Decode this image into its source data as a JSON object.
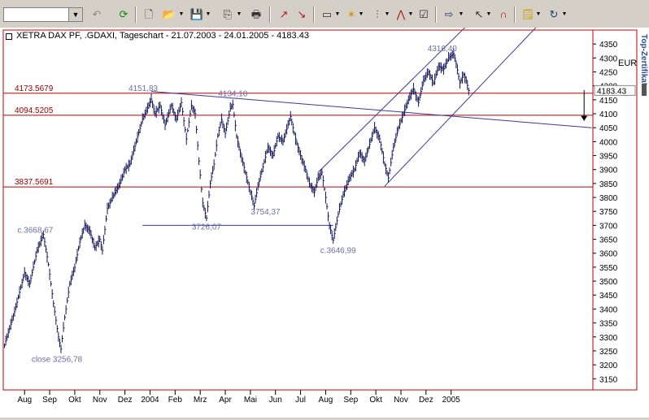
{
  "toolbar": {
    "combo_value": "",
    "icons": [
      "undo-icon",
      "refresh-icon",
      "new-icon",
      "open-icon",
      "save-icon",
      "copy-icon",
      "print-icon",
      "chart-a-icon",
      "chart-b-icon",
      "window-icon",
      "indicator-icon",
      "candle-icon",
      "zigzag-icon",
      "properties-icon",
      "arrow-icon",
      "pointer-icon",
      "magnet-icon",
      "notes-icon",
      "reload-icon"
    ]
  },
  "chart_title": "XETRA DAX PF, .GDAXI, Tageschart - 21.07.2003 - 24.01.2005 - 4183.43",
  "currency": "EUR",
  "sidebar_label": "Top-Zertifikate",
  "chart_data": {
    "type": "bar",
    "subtype": "ohlc",
    "title": "XETRA DAX PF, .GDAXI, Tageschart - 21.07.2003 - 24.01.2005 - 4183.43",
    "xlabel": "",
    "ylabel": "",
    "ylim": [
      3110,
      4400
    ],
    "y_ticks": [
      3150,
      3200,
      3250,
      3300,
      3350,
      3400,
      3450,
      3500,
      3550,
      3600,
      3650,
      3700,
      3750,
      3800,
      3850,
      3900,
      3950,
      4000,
      4050,
      4100,
      4150,
      4200,
      4250,
      4300,
      4350
    ],
    "x_ticks": [
      {
        "label": "Aug",
        "x": 0.0
      },
      {
        "label": "Sep",
        "x": 1.0
      },
      {
        "label": "Okt",
        "x": 2.0
      },
      {
        "label": "Nov",
        "x": 3.0
      },
      {
        "label": "Dez",
        "x": 4.0
      },
      {
        "label": "2004",
        "x": 5.0
      },
      {
        "label": "Feb",
        "x": 6.0
      },
      {
        "label": "Mrz",
        "x": 7.0
      },
      {
        "label": "Apr",
        "x": 8.0
      },
      {
        "label": "Mai",
        "x": 9.0
      },
      {
        "label": "Jun",
        "x": 10.0
      },
      {
        "label": "Jul",
        "x": 11.0
      },
      {
        "label": "Aug",
        "x": 12.0
      },
      {
        "label": "Sep",
        "x": 13.0
      },
      {
        "label": "Okt",
        "x": 14.0
      },
      {
        "label": "Nov",
        "x": 15.0
      },
      {
        "label": "Dez",
        "x": 16.0
      },
      {
        "label": "2005",
        "x": 17.0
      }
    ],
    "x_range": [
      -0.85,
      22.65
    ],
    "last_price": "4183.43",
    "anchors": [
      [
        -0.8,
        3270
      ],
      [
        -0.4,
        3390
      ],
      [
        0.0,
        3530
      ],
      [
        0.2,
        3490
      ],
      [
        0.5,
        3610
      ],
      [
        0.75,
        3668
      ],
      [
        0.95,
        3560
      ],
      [
        1.15,
        3420
      ],
      [
        1.35,
        3300
      ],
      [
        1.45,
        3257
      ],
      [
        1.6,
        3370
      ],
      [
        1.8,
        3490
      ],
      [
        2.0,
        3550
      ],
      [
        2.2,
        3640
      ],
      [
        2.4,
        3700
      ],
      [
        2.6,
        3680
      ],
      [
        2.8,
        3620
      ],
      [
        3.0,
        3650
      ],
      [
        3.1,
        3610
      ],
      [
        3.3,
        3760
      ],
      [
        3.5,
        3800
      ],
      [
        3.8,
        3850
      ],
      [
        4.0,
        3900
      ],
      [
        4.2,
        3920
      ],
      [
        4.45,
        4000
      ],
      [
        4.7,
        4080
      ],
      [
        4.9,
        4120
      ],
      [
        5.05,
        4152
      ],
      [
        5.2,
        4100
      ],
      [
        5.4,
        4130
      ],
      [
        5.6,
        4060
      ],
      [
        5.85,
        4130
      ],
      [
        6.05,
        4080
      ],
      [
        6.25,
        4140
      ],
      [
        6.45,
        4010
      ],
      [
        6.65,
        4130
      ],
      [
        6.8,
        4100
      ],
      [
        6.95,
        3930
      ],
      [
        7.1,
        3780
      ],
      [
        7.25,
        3726
      ],
      [
        7.4,
        3850
      ],
      [
        7.55,
        3920
      ],
      [
        7.7,
        4020
      ],
      [
        7.85,
        4080
      ],
      [
        8.0,
        4030
      ],
      [
        8.2,
        4120
      ],
      [
        8.3,
        4134
      ],
      [
        8.45,
        4020
      ],
      [
        8.6,
        3960
      ],
      [
        8.8,
        3890
      ],
      [
        9.0,
        3820
      ],
      [
        9.15,
        3770
      ],
      [
        9.3,
        3840
      ],
      [
        9.5,
        3910
      ],
      [
        9.7,
        3980
      ],
      [
        9.9,
        3950
      ],
      [
        10.1,
        4020
      ],
      [
        10.3,
        4000
      ],
      [
        10.5,
        4060
      ],
      [
        10.6,
        4090
      ],
      [
        10.8,
        4010
      ],
      [
        11.0,
        3950
      ],
      [
        11.2,
        3900
      ],
      [
        11.35,
        3850
      ],
      [
        11.55,
        3820
      ],
      [
        11.7,
        3870
      ],
      [
        11.85,
        3890
      ],
      [
        12.0,
        3800
      ],
      [
        12.15,
        3700
      ],
      [
        12.3,
        3647
      ],
      [
        12.5,
        3740
      ],
      [
        12.7,
        3810
      ],
      [
        12.95,
        3870
      ],
      [
        13.15,
        3900
      ],
      [
        13.35,
        3960
      ],
      [
        13.55,
        3930
      ],
      [
        13.75,
        3990
      ],
      [
        13.95,
        4050
      ],
      [
        14.15,
        4010
      ],
      [
        14.35,
        3920
      ],
      [
        14.5,
        3870
      ],
      [
        14.7,
        3980
      ],
      [
        14.9,
        4050
      ],
      [
        15.1,
        4100
      ],
      [
        15.3,
        4150
      ],
      [
        15.5,
        4190
      ],
      [
        15.7,
        4140
      ],
      [
        15.9,
        4220
      ],
      [
        16.1,
        4250
      ],
      [
        16.3,
        4210
      ],
      [
        16.5,
        4270
      ],
      [
        16.7,
        4260
      ],
      [
        16.9,
        4300
      ],
      [
        17.1,
        4316
      ],
      [
        17.2,
        4280
      ],
      [
        17.35,
        4210
      ],
      [
        17.5,
        4240
      ],
      [
        17.6,
        4220
      ],
      [
        17.7,
        4183
      ]
    ],
    "horizontal_levels": [
      {
        "label": "4173.5679",
        "y": 4173.5679
      },
      {
        "label": "4094.5205",
        "y": 4094.5205
      },
      {
        "label": "3837.5691",
        "y": 3837.5691
      }
    ],
    "annotations": [
      {
        "label": "4151,83",
        "x": 5.05,
        "y": 4152
      },
      {
        "label": "4134,10",
        "x": 8.3,
        "y": 4134
      },
      {
        "label": "c.3668,67",
        "x": 0.75,
        "y": 3668
      },
      {
        "label": "3726,07",
        "x": 7.25,
        "y": 3726
      },
      {
        "label": "3754,37",
        "x": 9.15,
        "y": 3754
      },
      {
        "label": "c.3646,99",
        "x": 12.3,
        "y": 3647
      },
      {
        "label": "4316,40",
        "x": 17.1,
        "y": 4316
      },
      {
        "label": "close 3256,78",
        "x": 1.45,
        "y": 3257
      }
    ],
    "trend_lines": [
      {
        "name": "resistance",
        "from": [
          5.05,
          4180
        ],
        "to": [
          22.6,
          4050
        ]
      },
      {
        "name": "support",
        "from": [
          4.7,
          3700
        ],
        "to": [
          12.3,
          3700
        ]
      },
      {
        "name": "channel-upper",
        "from": [
          11.7,
          3890
        ],
        "to": [
          19.7,
          4600
        ]
      },
      {
        "name": "channel-lower",
        "from": [
          14.35,
          3840
        ],
        "to": [
          22.4,
          4600
        ]
      }
    ]
  }
}
